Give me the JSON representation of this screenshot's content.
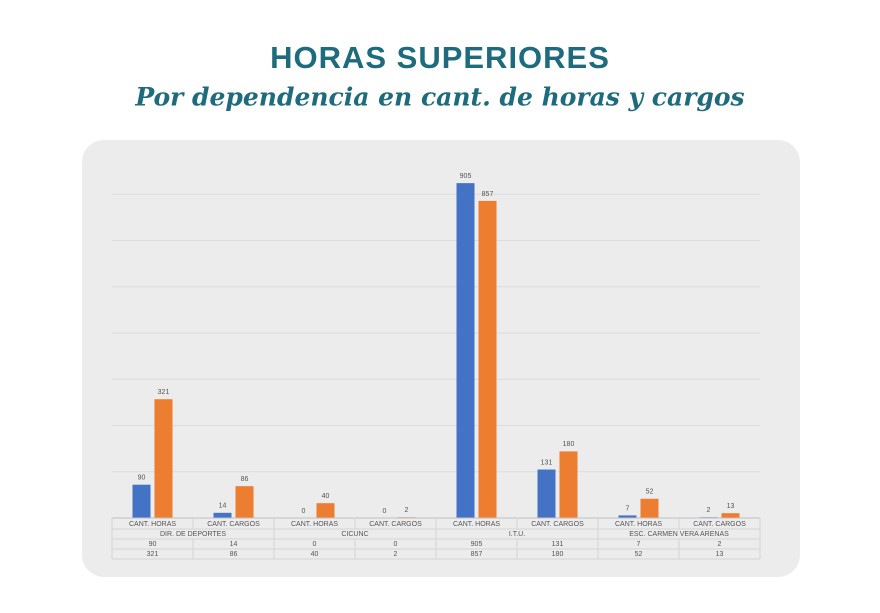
{
  "chart_data": {
    "type": "bar",
    "title": "HORAS SUPERIORES",
    "subtitle": "Por dependencia en cant. de horas y cargos",
    "categories": [
      "CANT. HORAS",
      "CANT. CARGOS",
      "CANT. HORAS",
      "CANT. CARGOS",
      "CANT. HORAS",
      "CANT. CARGOS",
      "CANT. HORAS",
      "CANT. CARGOS"
    ],
    "groups": [
      "DIR. DE DEPORTES",
      "CICUNC",
      "I.T.U.",
      "ESC. CARMEN VERA ARENAS"
    ],
    "series": [
      {
        "color": "#4472c4",
        "values": [
          90,
          14,
          0,
          0,
          905,
          131,
          7,
          2
        ]
      },
      {
        "color": "#ed7d31",
        "values": [
          321,
          86,
          40,
          2,
          857,
          180,
          52,
          13
        ]
      }
    ],
    "ylim": [
      0,
      1000
    ],
    "yticks": [
      0,
      125,
      250,
      375,
      500,
      625,
      750,
      875
    ],
    "grid": true
  }
}
